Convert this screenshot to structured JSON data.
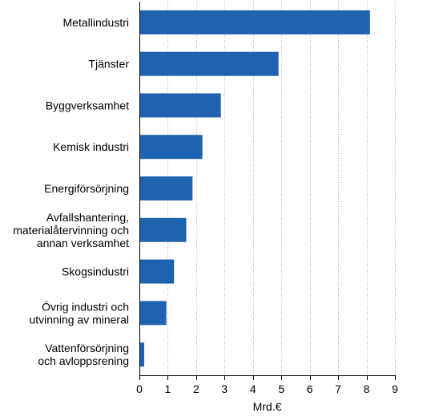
{
  "chart_data": {
    "type": "bar",
    "orientation": "horizontal",
    "categories": [
      [
        "Metallindustri"
      ],
      [
        "Tjänster"
      ],
      [
        "Byggverksamhet"
      ],
      [
        "Kemisk industri"
      ],
      [
        "Energiförsörjning"
      ],
      [
        "Avfallshantering,",
        "materialåtervinning och",
        "annan verksamhet"
      ],
      [
        "Skogsindustri"
      ],
      [
        "Övrig industri och",
        "utvinning av mineral"
      ],
      [
        "Vattenförsörjning",
        "och avloppsrening"
      ]
    ],
    "values": [
      8.12,
      4.9,
      2.87,
      2.22,
      1.87,
      1.65,
      1.22,
      0.95,
      0.17
    ],
    "xlabel": "Mrd.€",
    "xlim": [
      0,
      9
    ],
    "xticks": [
      "0",
      "1",
      "2",
      "3",
      "4",
      "5",
      "6",
      "7",
      "8",
      "9"
    ],
    "grid": "vertical dotted",
    "colors": {
      "bar": "#1f63b0"
    }
  }
}
